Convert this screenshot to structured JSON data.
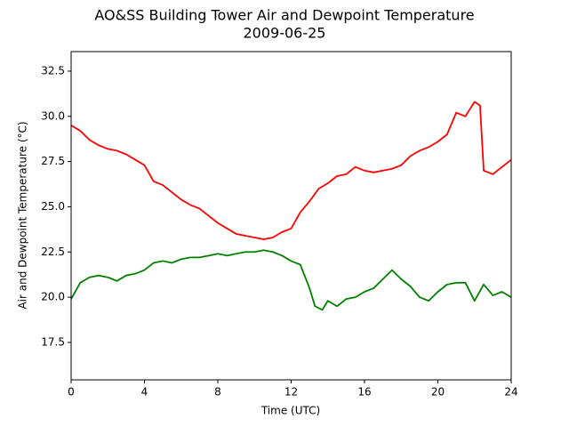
{
  "chart_data": {
    "type": "line",
    "title": "AO&SS Building Tower Air and Dewpoint Temperature",
    "subtitle": "2009-06-25",
    "x_label": "Time (UTC)",
    "y_label": "Air and Dewpoint Temperature (°C)",
    "xlim": [
      0,
      24
    ],
    "xticks": [
      0,
      4,
      8,
      12,
      16,
      20,
      24
    ],
    "ylim": [
      15.43,
      33.58
    ],
    "yticks": [
      {
        "value": 17.5,
        "label": "17.5"
      },
      {
        "value": 20,
        "label": "20.0"
      },
      {
        "value": 22.5,
        "label": "22.5"
      },
      {
        "value": 25,
        "label": "25.0"
      },
      {
        "value": 27.5,
        "label": "27.5"
      },
      {
        "value": 30,
        "label": "30.0"
      },
      {
        "value": 32.5,
        "label": "32.5"
      }
    ],
    "series": [
      {
        "color": "#ff0000",
        "x": [
          0,
          0.5,
          1,
          1.5,
          2,
          2.5,
          3,
          3.5,
          4,
          4.5,
          5,
          5.5,
          6,
          6.5,
          7,
          7.5,
          8,
          8.5,
          9,
          9.5,
          10,
          10.5,
          11,
          11.5,
          12,
          12.5,
          13,
          13.5,
          14,
          14.5,
          15,
          15.5,
          16,
          16.5,
          17,
          17.5,
          18,
          18.5,
          19,
          19.5,
          20,
          20.5,
          21,
          21.5,
          22,
          22.3,
          22.5,
          23,
          23.5,
          24
        ],
        "values": [
          29.5,
          29.2,
          28.7,
          28.4,
          28.2,
          28.1,
          27.9,
          27.6,
          27.3,
          26.4,
          26.2,
          25.8,
          25.4,
          25.1,
          24.9,
          24.5,
          24.1,
          23.8,
          23.5,
          23.4,
          23.3,
          23.2,
          23.3,
          23.6,
          23.8,
          24.7,
          25.3,
          26.0,
          26.3,
          26.7,
          26.8,
          27.2,
          27.0,
          26.9,
          27.0,
          27.1,
          27.3,
          27.8,
          28.1,
          28.3,
          28.6,
          29.0,
          30.2,
          30.0,
          30.8,
          30.6,
          27.0,
          26.8,
          27.2,
          27.6
        ]
      },
      {
        "color": "#008000",
        "x": [
          0,
          0.5,
          1,
          1.5,
          2,
          2.5,
          3,
          3.5,
          4,
          4.5,
          5,
          5.5,
          6,
          6.5,
          7,
          7.5,
          8,
          8.5,
          9,
          9.5,
          10,
          10.5,
          11,
          11.5,
          12,
          12.5,
          13,
          13.3,
          13.7,
          14,
          14.5,
          15,
          15.5,
          16,
          16.5,
          17,
          17.5,
          18,
          18.5,
          19,
          19.5,
          20,
          20.5,
          21,
          21.5,
          22,
          22.5,
          23,
          23.5,
          24
        ],
        "values": [
          19.9,
          20.8,
          21.1,
          21.2,
          21.1,
          20.9,
          21.2,
          21.3,
          21.5,
          21.9,
          22.0,
          21.9,
          22.1,
          22.2,
          22.2,
          22.3,
          22.4,
          22.3,
          22.4,
          22.5,
          22.5,
          22.6,
          22.5,
          22.3,
          22.0,
          21.8,
          20.5,
          19.5,
          19.3,
          19.8,
          19.5,
          19.9,
          20.0,
          20.3,
          20.5,
          21.0,
          21.5,
          21.0,
          20.6,
          20.0,
          19.8,
          20.3,
          20.7,
          20.8,
          20.8,
          19.8,
          20.7,
          20.1,
          20.3,
          20.0
        ]
      }
    ]
  }
}
